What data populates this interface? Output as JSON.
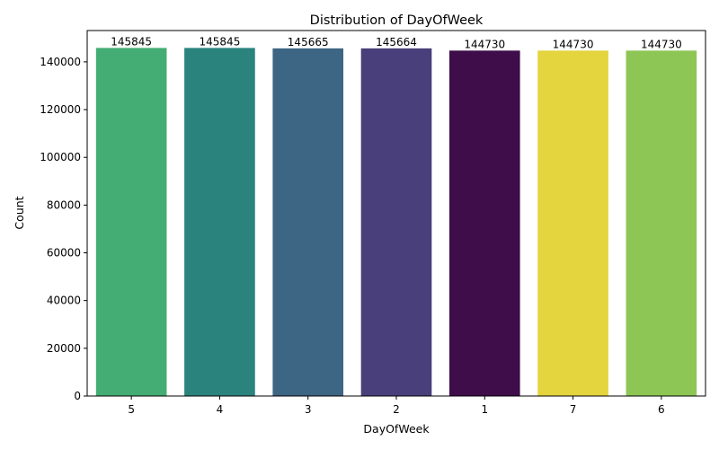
{
  "chart_data": {
    "type": "bar",
    "title": "Distribution of DayOfWeek",
    "xlabel": "DayOfWeek",
    "ylabel": "Count",
    "categories": [
      "5",
      "4",
      "3",
      "2",
      "1",
      "7",
      "6"
    ],
    "values": [
      145845,
      145845,
      145665,
      145664,
      144730,
      144730,
      144730
    ],
    "data_labels": [
      "145845",
      "145845",
      "145665",
      "145664",
      "144730",
      "144730",
      "144730"
    ],
    "colors": [
      "#44ad73",
      "#2b837e",
      "#3d6584",
      "#483f7b",
      "#3e0d4a",
      "#e4d43e",
      "#8dc655"
    ],
    "ylim": [
      0,
      153137
    ],
    "yticks": [
      0,
      20000,
      40000,
      60000,
      80000,
      100000,
      120000,
      140000
    ],
    "ytick_labels": [
      "0",
      "20000",
      "40000",
      "60000",
      "80000",
      "100000",
      "120000",
      "140000"
    ],
    "grid": false,
    "legend": "none"
  }
}
